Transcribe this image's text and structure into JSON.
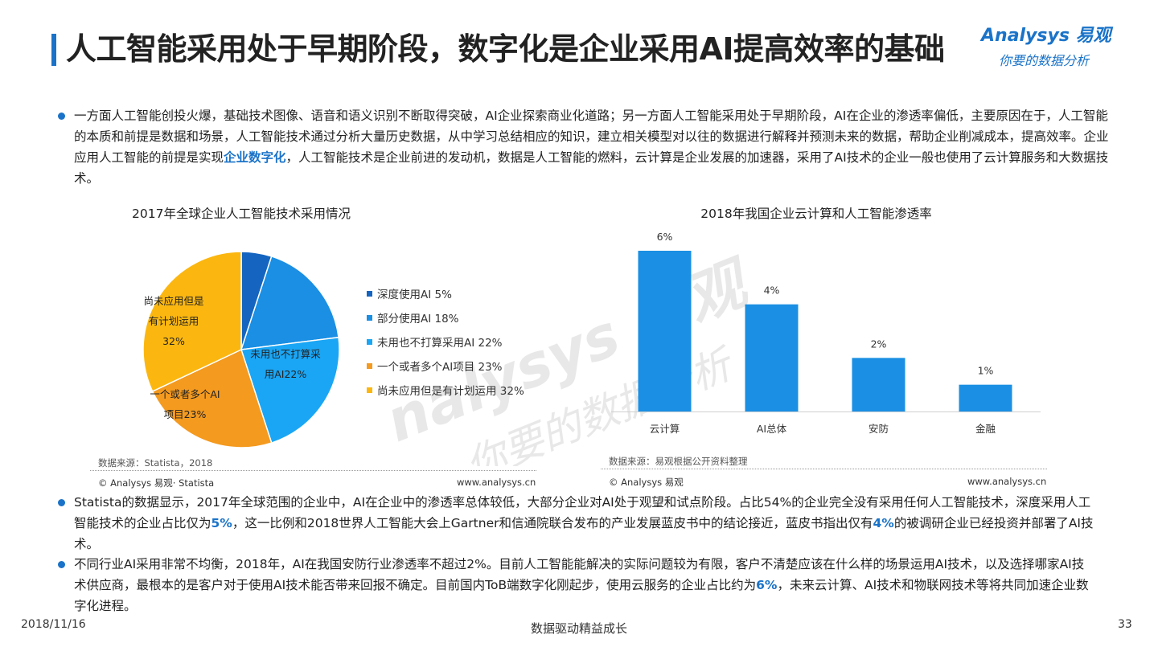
{
  "title": "人工智能采用处于早期阶段，数字化是企业采用AI提高效率的基础",
  "logo": {
    "brand": "Analysys 易观",
    "tagline": "你要的数据分析"
  },
  "intro": {
    "before": "一方面人工智能创投火爆，基础技术图像、语音和语义识别不断取得突破，AI企业探索商业化道路；另一方面人工智能采用处于早期阶段，AI在企业的渗透率偏低，主要原因在于，人工智能的本质和前提是数据和场景，人工智能技术通过分析大量历史数据，从中学习总结相应的知识，建立相关模型对以往的数据进行解释并预测未来的数据，帮助企业削减成本，提高效率。企业应用人工智能的前提是实现",
    "highlight": "企业数字化",
    "after": "，人工智能技术是企业前进的发动机，数据是人工智能的燃料，云计算是企业发展的加速器，采用了AI技术的企业一般也使用了云计算服务和大数据技术。"
  },
  "colors": {
    "accent": "#1a73c8",
    "bar": "#1a8fe3"
  },
  "chart_data": [
    {
      "type": "pie",
      "title": "2017年全球企业人工智能技术采用情况",
      "categories": [
        "深度使用AI",
        "部分使用AI",
        "未用也不打算采用AI",
        "一个或者多个AI项目",
        "尚未应用但是有计划运用"
      ],
      "values": [
        5,
        18,
        22,
        23,
        32
      ],
      "colors": [
        "#1565c0",
        "#1a8fe3",
        "#1aa6f5",
        "#f49a1f",
        "#fbb710"
      ],
      "legend_labels": [
        "深度使用AI  5%",
        "部分使用AI  18%",
        "未用也不打算采用AI  22%",
        "一个或者多个AI项目  23%",
        "尚未应用但是有计划运用  32%"
      ],
      "slice_labels": [
        {
          "lines": [
            "尚未应用但是",
            "有计划运用",
            "32%"
          ]
        },
        {
          "lines": [
            "未用也不打算采",
            "用AI22%"
          ]
        },
        {
          "lines": [
            "一个或者多个AI",
            "项目23%"
          ]
        }
      ],
      "legend_position": "right",
      "source": "数据来源：Statista，2018",
      "copyright": "© Analysys 易观· Statista",
      "website": "www.analysys.cn"
    },
    {
      "type": "bar",
      "title": "2018年我国企业云计算和人工智能渗透率",
      "categories": [
        "云计算",
        "AI总体",
        "安防",
        "金融"
      ],
      "values": [
        6,
        4,
        2,
        1
      ],
      "data_labels": [
        "6%",
        "4%",
        "2%",
        "1%"
      ],
      "ylim": [
        0,
        6
      ],
      "source": "数据来源：易观根据公开资料整理",
      "copyright": "© Analysys 易观",
      "website": "www.analysys.cn"
    }
  ],
  "para2": {
    "t1": "Statista的数据显示，2017年全球范围的企业中，AI在企业中的渗透率总体较低，大部分企业对AI处于观望和试点阶段。占比54%的企业完全没有采用任何人工智能技术，深度采用人工智能技术的企业占比仅为",
    "h1": "5%",
    "t2": "，这一比例和2018世界人工智能大会上Gartner和信通院联合发布的产业发展蓝皮书中的结论接近，蓝皮书指出仅有",
    "h2": "4%",
    "t3": "的被调研企业已经投资并部署了AI技术。"
  },
  "para3": {
    "t1": "不同行业AI采用非常不均衡，2018年，AI在我国安防行业渗透率不超过2%。目前人工智能能解决的实际问题较为有限，客户不清楚应该在什么样的场景运用AI技术，以及选择哪家AI技术供应商，最根本的是客户对于使用AI技术能否带来回报不确定。目前国内ToB端数字化刚起步，使用云服务的企业占比约为",
    "h1": "6%",
    "t2": "，未来云计算、AI技术和物联网技术等将共同加速企业数字化进程。"
  },
  "footer": {
    "date": "2018/11/16",
    "slogan": "数据驱动精益成长",
    "page": "33"
  }
}
